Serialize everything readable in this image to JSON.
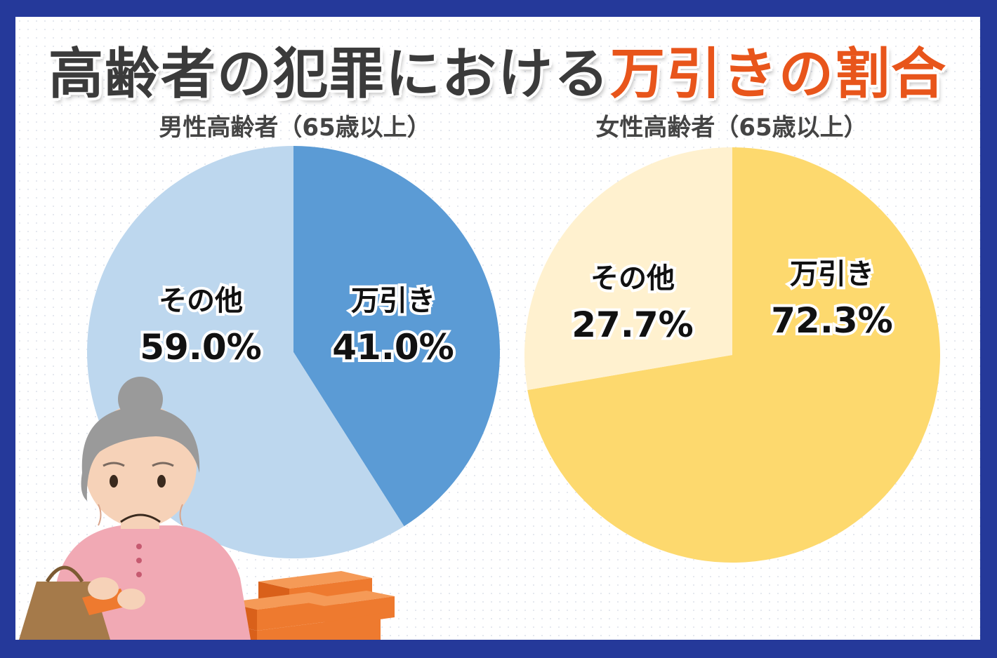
{
  "title": {
    "main": "高齢者の犯罪における",
    "highlight": "万引きの割合",
    "main_color": "#3b3b3b",
    "highlight_color": "#e8551b"
  },
  "colors": {
    "frame": "#25399a",
    "male_shoplifting": "#5b9bd5",
    "male_other": "#bdd7ee",
    "female_shoplifting": "#fdd96e",
    "female_other": "#fff1cf"
  },
  "chart_data": [
    {
      "type": "pie",
      "title": "男性高齢者（65歳以上）",
      "slices": [
        {
          "label": "万引き",
          "value": 41.0,
          "display": "41.0%",
          "color": "#5b9bd5"
        },
        {
          "label": "その他",
          "value": 59.0,
          "display": "59.0%",
          "color": "#bdd7ee"
        }
      ],
      "start_angle": "12 o'clock",
      "direction": "clockwise"
    },
    {
      "type": "pie",
      "title": "女性高齢者（65歳以上）",
      "slices": [
        {
          "label": "万引き",
          "value": 72.3,
          "display": "72.3%",
          "color": "#fdd96e"
        },
        {
          "label": "その他",
          "value": 27.7,
          "display": "27.7%",
          "color": "#fff1cf"
        }
      ],
      "start_angle": "12 o'clock",
      "direction": "clockwise"
    }
  ],
  "illustration": {
    "description_icon": "elderly-woman-shoplifting-icon",
    "items_icon": "stacked-boxes-icon"
  }
}
